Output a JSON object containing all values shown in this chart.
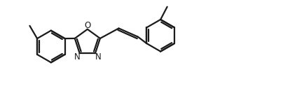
{
  "background_color": "#ffffff",
  "line_color": "#1a1a1a",
  "line_width": 1.6,
  "dbo": 0.07,
  "font_size": 8.5,
  "label_color": "#1a1a1a",
  "xlim": [
    0,
    10.5
  ],
  "ylim": [
    0,
    3.5
  ]
}
